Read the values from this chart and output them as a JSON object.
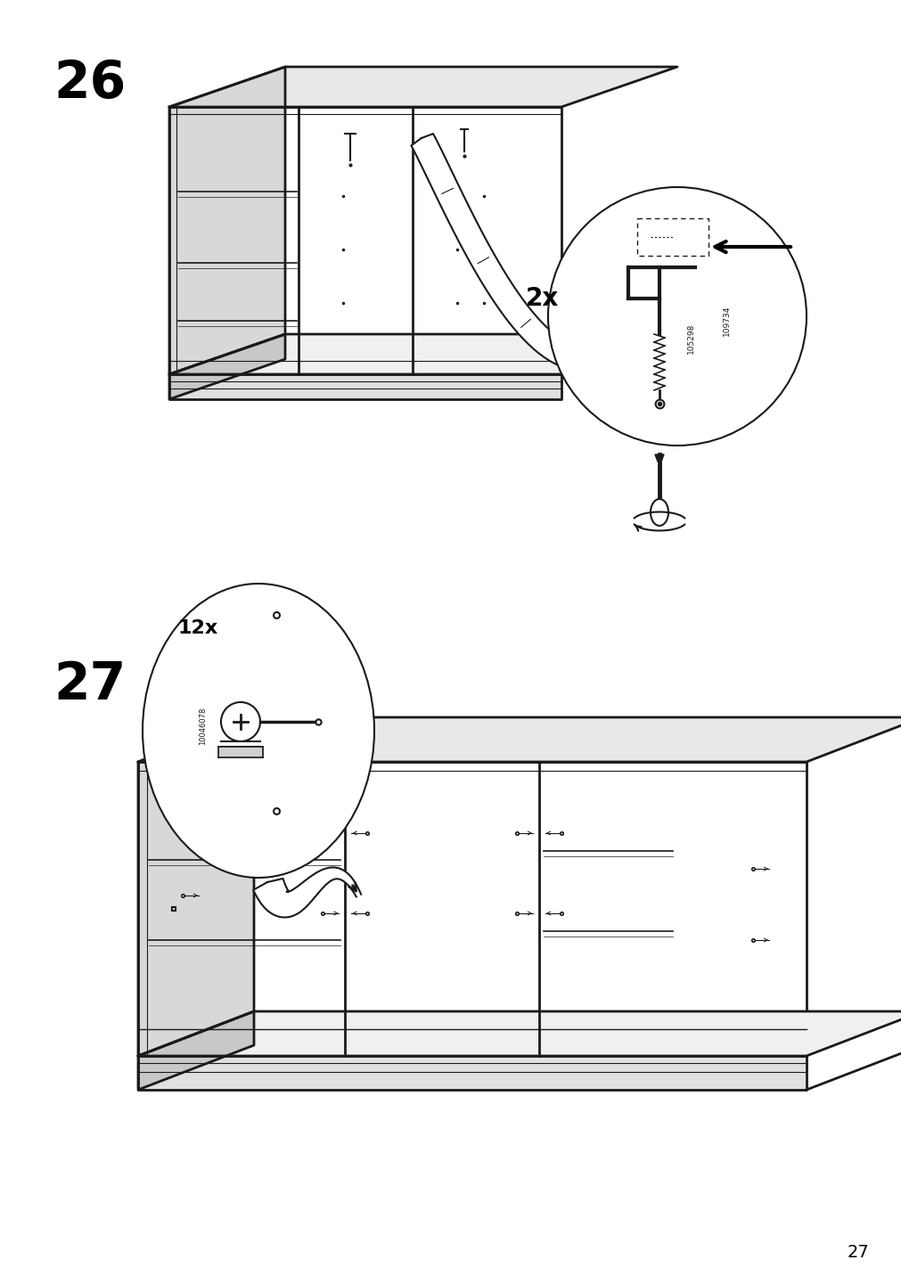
{
  "background_color": "#ffffff",
  "page_number": "27",
  "step26": {
    "number": "26",
    "qty_label": "2x",
    "part_codes": [
      "105298",
      "109734"
    ]
  },
  "step27": {
    "number": "27",
    "qty_label": "12x",
    "part_code": "10046078"
  }
}
